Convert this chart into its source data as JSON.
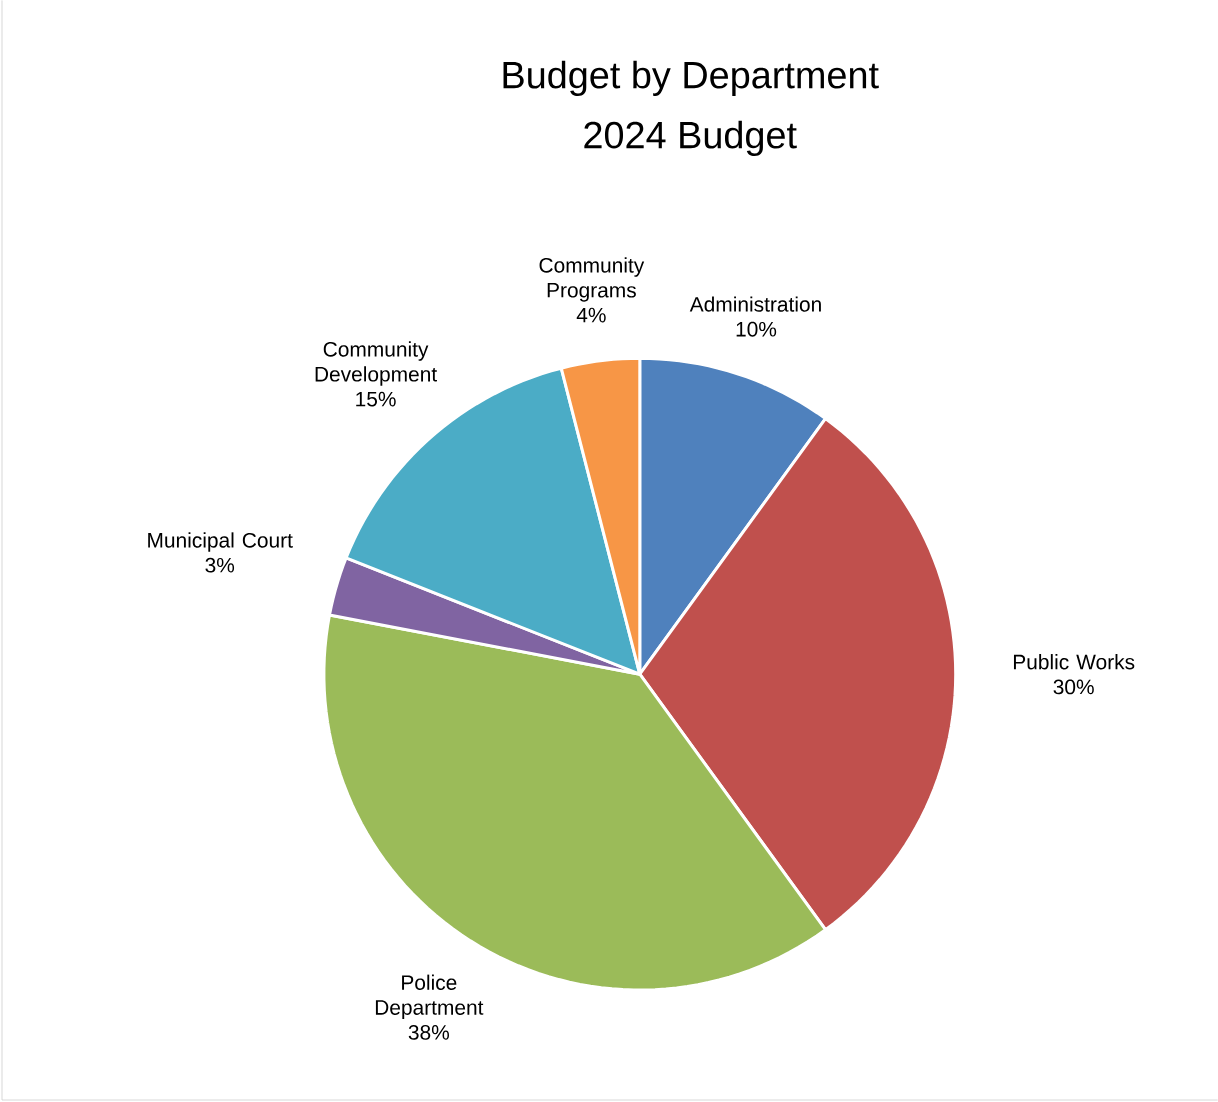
{
  "chart_data": {
    "type": "pie",
    "title": "Budget by Department",
    "subtitle": "2024 Budget",
    "categories": [
      "Administration",
      "Public Works",
      "Police Department",
      "Municipal Court",
      "Community Development",
      "Community Programs"
    ],
    "values": [
      10,
      30,
      38,
      3,
      15,
      4
    ],
    "colors": [
      "#4f81bd",
      "#c0504d",
      "#9bbb59",
      "#8064a2",
      "#4bacc6",
      "#f79646"
    ],
    "value_labels": [
      "10%",
      "30%",
      "38%",
      "3%",
      "15%",
      "4%"
    ]
  }
}
